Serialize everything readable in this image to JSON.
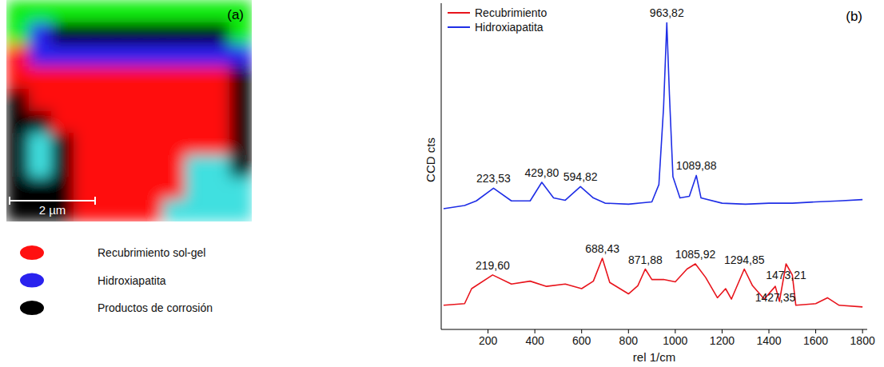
{
  "chart_data": [
    {
      "type": "image_map",
      "label": "(a)",
      "width_um": 5.74,
      "height_um": 5.18,
      "scale_bar": {
        "length": 2,
        "label": "2 µm"
      },
      "legend": "bottom",
      "classes": [
        {
          "name": "Recubrimiento sol-gel",
          "color": "#ff1010"
        },
        {
          "name": "Hidroxiapatita",
          "color": "#2a22ee"
        },
        {
          "name": "Productos de corrosión",
          "color": "#000000"
        },
        {
          "name": null,
          "color": "#10ee10"
        },
        {
          "name": null,
          "color": "#40e0e0"
        }
      ],
      "cells": [
        [
          3,
          3,
          3,
          3,
          3,
          3,
          3,
          3,
          3,
          3,
          3
        ],
        [
          3,
          1,
          2,
          2,
          2,
          2,
          2,
          2,
          2,
          2,
          3
        ],
        [
          0,
          1,
          1,
          1,
          1,
          1,
          1,
          1,
          1,
          1,
          1
        ],
        [
          0,
          0,
          0,
          0,
          0,
          0,
          0,
          0,
          0,
          0,
          2
        ],
        [
          2,
          0,
          0,
          0,
          0,
          0,
          0,
          0,
          0,
          0,
          2
        ],
        [
          2,
          2,
          0,
          0,
          0,
          0,
          0,
          0,
          0,
          0,
          2
        ],
        [
          2,
          4,
          2,
          0,
          0,
          0,
          0,
          0,
          0,
          0,
          2
        ],
        [
          2,
          4,
          2,
          0,
          0,
          0,
          0,
          0,
          4,
          4,
          2
        ],
        [
          2,
          2,
          2,
          0,
          0,
          0,
          0,
          0,
          4,
          4,
          4
        ],
        [
          2,
          2,
          2,
          0,
          0,
          0,
          0,
          4,
          4,
          4,
          4
        ]
      ]
    },
    {
      "type": "line",
      "label": "(b)",
      "x_label": "rel 1/cm",
      "y_label": "CCD cts",
      "xlim": [
        0,
        1820
      ],
      "ylim": [
        0,
        100
      ],
      "xticks": [
        200,
        400,
        600,
        800,
        1000,
        1200,
        1400,
        1600,
        1800
      ],
      "tick_labels": "x",
      "legend": "top-left",
      "series": [
        {
          "name": "Recubrimiento",
          "color": "#e8141c",
          "x": [
            10,
            100,
            130,
            219.6,
            300,
            380,
            450,
            530,
            600,
            650,
            688.43,
            720,
            800,
            840,
            871.88,
            900,
            950,
            1000,
            1050,
            1085.92,
            1130,
            1180,
            1215,
            1240,
            1294.85,
            1330,
            1380,
            1427.35,
            1445,
            1473.21,
            1500,
            1515,
            1600,
            1650,
            1700,
            1800
          ],
          "values": [
            7.4,
            7.9,
            12.5,
            16.7,
            13.9,
            14.8,
            13.2,
            13.9,
            12.5,
            14.8,
            21.8,
            14.4,
            10.9,
            13.4,
            18.5,
            15.3,
            15.3,
            14.6,
            18.5,
            20.1,
            15.9,
            9.7,
            12.5,
            9.3,
            18.5,
            13.4,
            9.3,
            13.2,
            8.6,
            20.1,
            16.7,
            7.4,
            7.9,
            9.7,
            7.4,
            6.9
          ],
          "peaks": [
            {
              "x": 219.6,
              "label": "219,60"
            },
            {
              "x": 688.43,
              "label": "688,43"
            },
            {
              "x": 871.88,
              "label": "871,88"
            },
            {
              "x": 1085.92,
              "label": "1085,92"
            },
            {
              "x": 1294.85,
              "label": "1294,85"
            },
            {
              "x": 1473.21,
              "label": "1473,21"
            },
            {
              "x": 1427.35,
              "label": "1427,35"
            }
          ]
        },
        {
          "name": "Hidroxiapatita",
          "color": "#1f2ee6",
          "x": [
            10,
            100,
            150,
            223.53,
            300,
            380,
            429.8,
            480,
            530,
            594.82,
            650,
            700,
            800,
            900,
            930,
            950,
            963.82,
            975,
            990,
            1020,
            1060,
            1089.88,
            1110,
            1200,
            1300,
            1400,
            1500,
            1600,
            1700,
            1800
          ],
          "values": [
            37,
            38,
            39.4,
            43.3,
            39.4,
            39.4,
            45.1,
            40.3,
            39.6,
            43.8,
            40.3,
            38.7,
            38.4,
            39.1,
            44.4,
            68,
            94,
            72,
            46.8,
            40.3,
            40.8,
            47.2,
            40.3,
            38.7,
            38.4,
            38.7,
            38.7,
            39.1,
            39.4,
            39.8
          ],
          "peaks": [
            {
              "x": 223.53,
              "label": "223,53"
            },
            {
              "x": 429.8,
              "label": "429,80"
            },
            {
              "x": 594.82,
              "label": "594,82"
            },
            {
              "x": 963.82,
              "label": "963,82"
            },
            {
              "x": 1089.88,
              "label": "1089,88"
            }
          ]
        }
      ]
    }
  ]
}
